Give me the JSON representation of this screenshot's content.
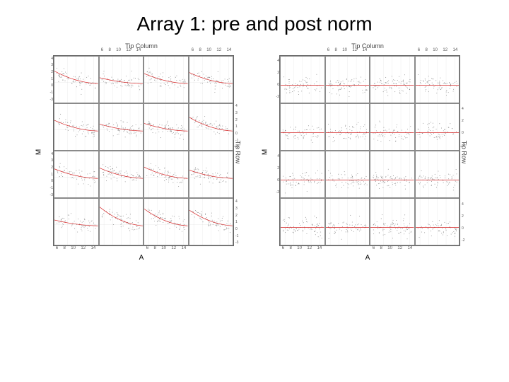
{
  "title": "Array 1: pre and post norm",
  "global": {
    "x_label": "A",
    "y_label": "M",
    "top_strip": "Tip Column",
    "right_strip": "Tip Row",
    "x_ticks": [
      6,
      8,
      10,
      12,
      14
    ],
    "y_ticks_pre": [
      -3,
      -1,
      0,
      1,
      2,
      3,
      4
    ],
    "y_ticks_post": [
      -2,
      0,
      2,
      4
    ],
    "xlim": [
      5,
      15
    ],
    "ylim_pre": [
      -3.5,
      4.5
    ],
    "ylim_post": [
      -3,
      5
    ],
    "point_color": "#2b2b2b",
    "point_opacity": 0.55,
    "point_radius": 0.8,
    "loess_color": "#d62728",
    "loess_width": 1.1,
    "panel_border": "#8a8a8a",
    "grid_color": "#cccccc",
    "background": "#ffffff",
    "rows": 4,
    "cols": 4,
    "font_family": "Arial",
    "title_fontsize": 28,
    "axis_label_fontsize": 10,
    "tick_fontsize": 6,
    "strip_fontsize": 9
  },
  "charts": [
    {
      "id": "pre",
      "ylim_key": "ylim_pre",
      "y_ticks_key": "y_ticks_pre",
      "curve_bias_range": [
        0.4,
        1.6
      ],
      "curve_shape": "downcurve",
      "scatter_spread": 1.0
    },
    {
      "id": "post",
      "ylim_key": "ylim_post",
      "y_ticks_key": "y_ticks_post",
      "curve_bias_range": [
        0,
        0
      ],
      "curve_shape": "flat",
      "scatter_spread": 1.2
    }
  ]
}
